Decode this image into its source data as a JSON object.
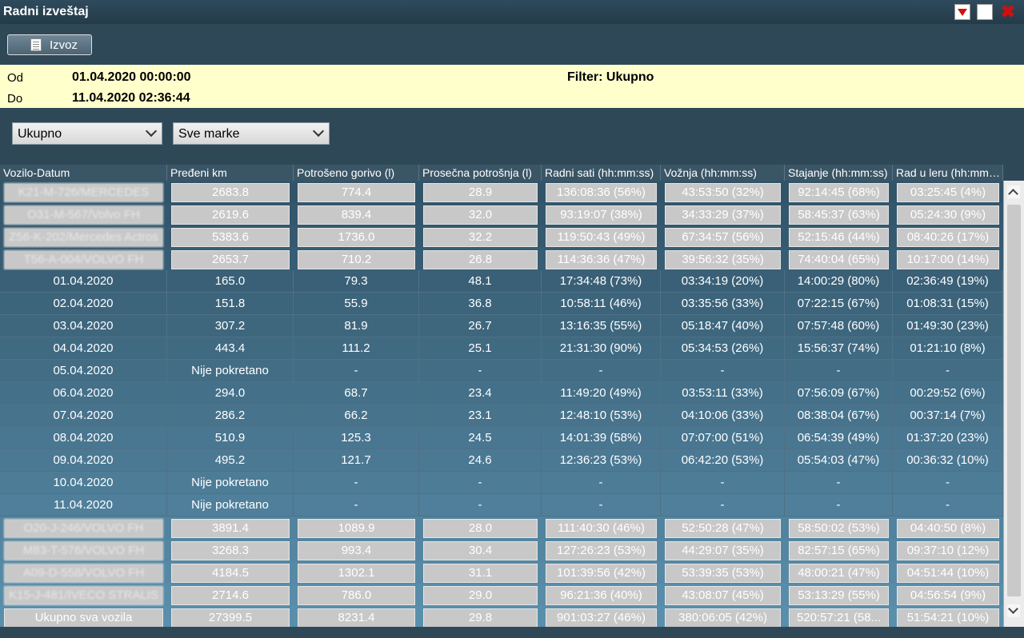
{
  "window": {
    "title": "Radni izveštaj"
  },
  "toolbar": {
    "export_label": "Izvoz"
  },
  "info": {
    "from_label": "Od",
    "from_value": "01.04.2020 00:00:00",
    "to_label": "Do",
    "to_value": "11.04.2020 02:36:44",
    "filter": "Filter: Ukupno"
  },
  "filters": {
    "type_selected": "Ukupno",
    "brand_selected": "Sve marke"
  },
  "table": {
    "headers": [
      "Vozilo-Datum",
      "Pređeni km",
      "Potrošeno gorivo (l)",
      "Prosečna potrošnja (l)",
      "Radni sati (hh:mm:ss)",
      "Vožnja (hh:mm:ss)",
      "Stajanje (hh:mm:ss)",
      "Rad u leru (hh:mm:ss)"
    ],
    "rows": [
      {
        "kind": "vehicle",
        "cells": [
          "K21-M-726/MERCEDES",
          "2683.8",
          "774.4",
          "28.9",
          "136:08:36 (56%)",
          "43:53:50 (32%)",
          "92:14:45 (68%)",
          "03:25:45 (4%)"
        ]
      },
      {
        "kind": "vehicle",
        "cells": [
          "O31-M-567/Volvo FH",
          "2619.6",
          "839.4",
          "32.0",
          "93:19:07 (38%)",
          "34:33:29 (37%)",
          "58:45:37 (63%)",
          "05:24:30 (9%)"
        ]
      },
      {
        "kind": "vehicle",
        "cells": [
          "Z56-K-202/Mercedes Actros",
          "5383.6",
          "1736.0",
          "32.2",
          "119:50:43 (49%)",
          "67:34:57 (56%)",
          "52:15:46 (44%)",
          "08:40:26 (17%)"
        ]
      },
      {
        "kind": "vehicle",
        "cells": [
          "T56-A-004/VOLVO FH",
          "2653.7",
          "710.2",
          "26.8",
          "114:36:36 (47%)",
          "39:56:32 (35%)",
          "74:40:04 (65%)",
          "10:17:00 (14%)"
        ]
      },
      {
        "kind": "date",
        "cells": [
          "01.04.2020",
          "165.0",
          "79.3",
          "48.1",
          "17:34:48 (73%)",
          "03:34:19 (20%)",
          "14:00:29 (80%)",
          "02:36:49 (19%)"
        ]
      },
      {
        "kind": "date",
        "cells": [
          "02.04.2020",
          "151.8",
          "55.9",
          "36.8",
          "10:58:11 (46%)",
          "03:35:56 (33%)",
          "07:22:15 (67%)",
          "01:08:31 (15%)"
        ]
      },
      {
        "kind": "date",
        "cells": [
          "03.04.2020",
          "307.2",
          "81.9",
          "26.7",
          "13:16:35 (55%)",
          "05:18:47 (40%)",
          "07:57:48 (60%)",
          "01:49:30 (23%)"
        ]
      },
      {
        "kind": "date",
        "cells": [
          "04.04.2020",
          "443.4",
          "111.2",
          "25.1",
          "21:31:30 (90%)",
          "05:34:53 (26%)",
          "15:56:37 (74%)",
          "01:21:10 (8%)"
        ]
      },
      {
        "kind": "date",
        "cells": [
          "05.04.2020",
          "Nije pokretano",
          "-",
          "-",
          "-",
          "-",
          "-",
          "-"
        ]
      },
      {
        "kind": "date",
        "cells": [
          "06.04.2020",
          "294.0",
          "68.7",
          "23.4",
          "11:49:20 (49%)",
          "03:53:11 (33%)",
          "07:56:09 (67%)",
          "00:29:52 (6%)"
        ]
      },
      {
        "kind": "date",
        "cells": [
          "07.04.2020",
          "286.2",
          "66.2",
          "23.1",
          "12:48:10 (53%)",
          "04:10:06 (33%)",
          "08:38:04 (67%)",
          "00:37:14 (7%)"
        ]
      },
      {
        "kind": "date",
        "cells": [
          "08.04.2020",
          "510.9",
          "125.3",
          "24.5",
          "14:01:39 (58%)",
          "07:07:00 (51%)",
          "06:54:39 (49%)",
          "01:37:20 (23%)"
        ]
      },
      {
        "kind": "date",
        "cells": [
          "09.04.2020",
          "495.2",
          "121.7",
          "24.6",
          "12:36:23 (53%)",
          "06:42:20 (53%)",
          "05:54:03 (47%)",
          "00:36:32 (10%)"
        ]
      },
      {
        "kind": "date",
        "cells": [
          "10.04.2020",
          "Nije pokretano",
          "-",
          "-",
          "-",
          "-",
          "-",
          "-"
        ]
      },
      {
        "kind": "date",
        "cells": [
          "11.04.2020",
          "Nije pokretano",
          "-",
          "-",
          "-",
          "-",
          "-",
          "-"
        ]
      },
      {
        "kind": "vehicle",
        "cells": [
          "O20-J-246/VOLVO FH",
          "3891.4",
          "1089.9",
          "28.0",
          "111:40:30 (46%)",
          "52:50:28 (47%)",
          "58:50:02 (53%)",
          "04:40:50 (8%)"
        ]
      },
      {
        "kind": "vehicle",
        "cells": [
          "M83-T-576/VOLVO FH",
          "3268.3",
          "993.4",
          "30.4",
          "127:26:23 (53%)",
          "44:29:07 (35%)",
          "82:57:15 (65%)",
          "09:37:10 (12%)"
        ]
      },
      {
        "kind": "vehicle",
        "cells": [
          "A09-D-558/VOLVO FH",
          "4184.5",
          "1302.1",
          "31.1",
          "101:39:56 (42%)",
          "53:39:35 (53%)",
          "48:00:21 (47%)",
          "04:51:44 (10%)"
        ]
      },
      {
        "kind": "vehicle",
        "cells": [
          "K15-J-481/IVECO STRALIS",
          "2714.6",
          "786.0",
          "29.0",
          "96:21:36 (40%)",
          "43:08:07 (45%)",
          "53:13:29 (55%)",
          "04:56:54 (9%)"
        ]
      },
      {
        "kind": "total",
        "cells": [
          "Ukupno sva vozila",
          "27399.5",
          "8231.4",
          "29.8",
          "901:03:27 (46%)",
          "380:06:05 (42%)",
          "520:57:21 (58...",
          "51:54:21 (10%)"
        ]
      }
    ]
  },
  "colors": {
    "date_row_top": "#315469",
    "date_row_bottom": "#5a8fac",
    "vehicle_cell": "#c8c8c8",
    "info_bg": "#ffffcc"
  }
}
